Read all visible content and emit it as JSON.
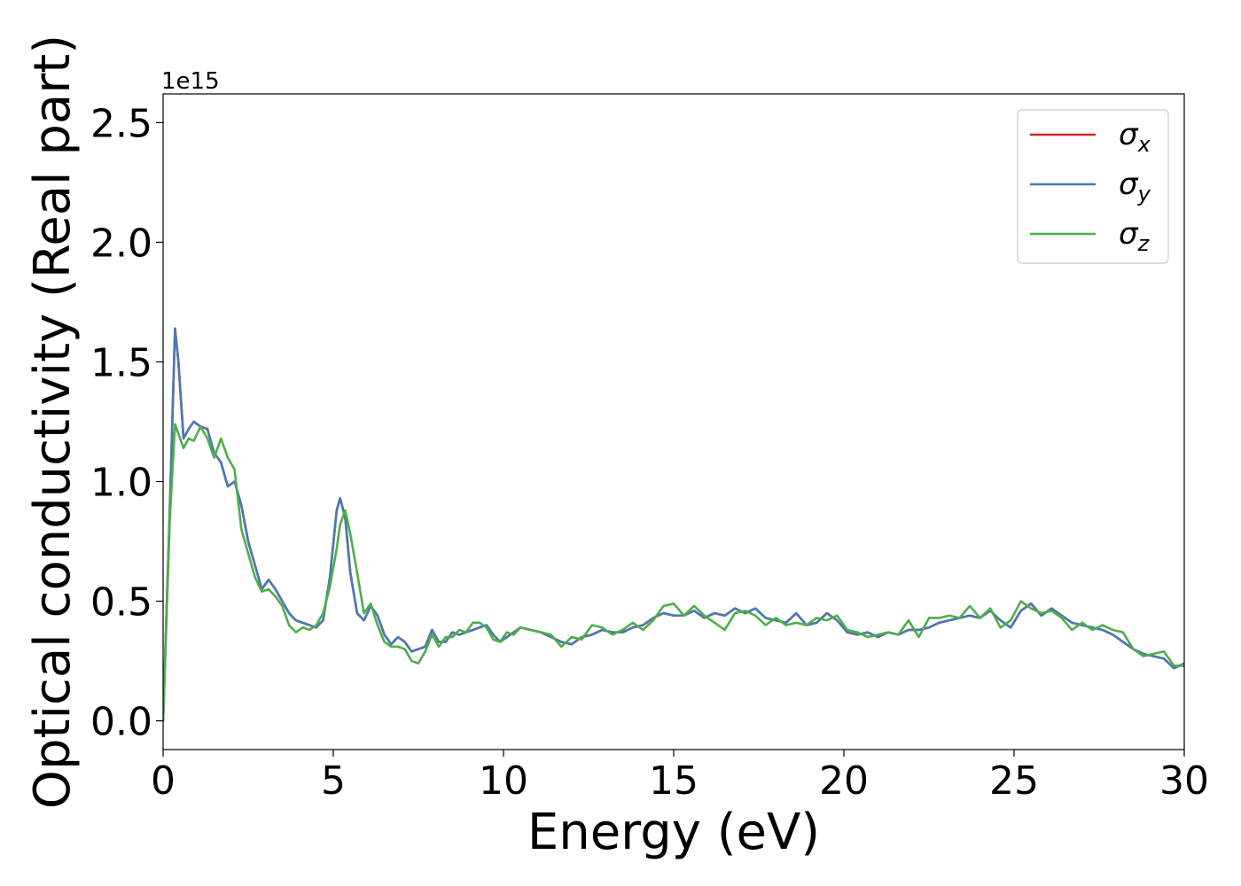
{
  "chart_data": {
    "type": "line",
    "title": "",
    "xlabel": "Energy (eV)",
    "ylabel": "Optical conductivity (Real part)",
    "y_multiplier_label": "1e15",
    "xlim": [
      0,
      30
    ],
    "ylim": [
      -0.12,
      2.62
    ],
    "xticks": [
      0,
      5,
      10,
      15,
      20,
      25,
      30
    ],
    "yticks": [
      0.0,
      0.5,
      1.0,
      1.5,
      2.0,
      2.5
    ],
    "xtick_labels": [
      "0",
      "5",
      "10",
      "15",
      "20",
      "25",
      "30"
    ],
    "ytick_labels": [
      "0.0",
      "0.5",
      "1.0",
      "1.5",
      "2.0",
      "2.5"
    ],
    "grid": false,
    "legend_position": "top-right",
    "series": [
      {
        "name": "σx",
        "legend_symbol": "σ",
        "legend_subscript": "x",
        "color": "#d62728",
        "x": [
          0,
          0.2,
          0.35,
          0.45,
          0.6,
          0.75,
          0.9,
          1.1,
          1.3,
          1.5,
          1.7,
          1.9,
          2.1,
          2.3,
          2.5,
          2.7,
          2.9,
          3.1,
          3.3,
          3.5,
          3.7,
          3.9,
          4.1,
          4.3,
          4.5,
          4.7,
          4.9,
          5.1,
          5.2,
          5.35,
          5.5,
          5.7,
          5.9,
          6.1,
          6.3,
          6.5,
          6.7,
          6.9,
          7.1,
          7.3,
          7.5,
          7.7,
          7.9,
          8.1,
          8.3,
          8.5,
          8.7,
          8.9,
          9.1,
          9.3,
          9.5,
          9.7,
          9.9,
          10.1,
          10.3,
          10.5,
          10.8,
          11.1,
          11.4,
          11.7,
          12.0,
          12.3,
          12.6,
          12.9,
          13.2,
          13.5,
          13.8,
          14.1,
          14.4,
          14.7,
          15.0,
          15.3,
          15.6,
          15.9,
          16.2,
          16.5,
          16.8,
          17.1,
          17.4,
          17.7,
          18.0,
          18.3,
          18.6,
          18.9,
          19.2,
          19.5,
          19.8,
          20.1,
          20.4,
          20.7,
          21.0,
          21.3,
          21.6,
          21.9,
          22.2,
          22.5,
          22.8,
          23.1,
          23.4,
          23.7,
          24.0,
          24.3,
          24.6,
          24.9,
          25.2,
          25.5,
          25.8,
          26.1,
          26.4,
          26.7,
          27.0,
          27.3,
          27.6,
          27.9,
          28.2,
          28.5,
          28.8,
          29.1,
          29.4,
          29.7,
          30.0
        ],
        "values": [
          0.0,
          0.9,
          1.64,
          1.5,
          1.18,
          1.22,
          1.25,
          1.23,
          1.22,
          1.12,
          1.08,
          0.98,
          1.0,
          0.9,
          0.75,
          0.65,
          0.55,
          0.59,
          0.55,
          0.5,
          0.45,
          0.42,
          0.41,
          0.4,
          0.39,
          0.42,
          0.6,
          0.88,
          0.93,
          0.85,
          0.62,
          0.45,
          0.42,
          0.48,
          0.44,
          0.36,
          0.32,
          0.35,
          0.33,
          0.29,
          0.3,
          0.31,
          0.38,
          0.33,
          0.33,
          0.37,
          0.36,
          0.37,
          0.38,
          0.39,
          0.4,
          0.36,
          0.33,
          0.35,
          0.37,
          0.39,
          0.38,
          0.37,
          0.35,
          0.33,
          0.32,
          0.35,
          0.36,
          0.38,
          0.37,
          0.37,
          0.39,
          0.4,
          0.43,
          0.45,
          0.44,
          0.44,
          0.46,
          0.43,
          0.45,
          0.44,
          0.47,
          0.45,
          0.47,
          0.43,
          0.42,
          0.41,
          0.45,
          0.4,
          0.41,
          0.45,
          0.42,
          0.37,
          0.36,
          0.37,
          0.35,
          0.37,
          0.36,
          0.38,
          0.38,
          0.39,
          0.41,
          0.42,
          0.43,
          0.44,
          0.43,
          0.46,
          0.42,
          0.39,
          0.46,
          0.49,
          0.44,
          0.47,
          0.44,
          0.41,
          0.4,
          0.39,
          0.38,
          0.36,
          0.33,
          0.3,
          0.28,
          0.27,
          0.26,
          0.22,
          0.24
        ]
      },
      {
        "name": "σy",
        "legend_symbol": "σ",
        "legend_subscript": "y",
        "color": "#4a7aaf",
        "x": [
          0,
          0.2,
          0.35,
          0.45,
          0.6,
          0.75,
          0.9,
          1.1,
          1.3,
          1.5,
          1.7,
          1.9,
          2.1,
          2.3,
          2.5,
          2.7,
          2.9,
          3.1,
          3.3,
          3.5,
          3.7,
          3.9,
          4.1,
          4.3,
          4.5,
          4.7,
          4.9,
          5.1,
          5.2,
          5.35,
          5.5,
          5.7,
          5.9,
          6.1,
          6.3,
          6.5,
          6.7,
          6.9,
          7.1,
          7.3,
          7.5,
          7.7,
          7.9,
          8.1,
          8.3,
          8.5,
          8.7,
          8.9,
          9.1,
          9.3,
          9.5,
          9.7,
          9.9,
          10.1,
          10.3,
          10.5,
          10.8,
          11.1,
          11.4,
          11.7,
          12.0,
          12.3,
          12.6,
          12.9,
          13.2,
          13.5,
          13.8,
          14.1,
          14.4,
          14.7,
          15.0,
          15.3,
          15.6,
          15.9,
          16.2,
          16.5,
          16.8,
          17.1,
          17.4,
          17.7,
          18.0,
          18.3,
          18.6,
          18.9,
          19.2,
          19.5,
          19.8,
          20.1,
          20.4,
          20.7,
          21.0,
          21.3,
          21.6,
          21.9,
          22.2,
          22.5,
          22.8,
          23.1,
          23.4,
          23.7,
          24.0,
          24.3,
          24.6,
          24.9,
          25.2,
          25.5,
          25.8,
          26.1,
          26.4,
          26.7,
          27.0,
          27.3,
          27.6,
          27.9,
          28.2,
          28.5,
          28.8,
          29.1,
          29.4,
          29.7,
          30.0
        ],
        "values": [
          0.0,
          0.9,
          1.64,
          1.5,
          1.18,
          1.22,
          1.25,
          1.23,
          1.22,
          1.12,
          1.08,
          0.98,
          1.0,
          0.9,
          0.75,
          0.65,
          0.55,
          0.59,
          0.55,
          0.5,
          0.45,
          0.42,
          0.41,
          0.4,
          0.39,
          0.42,
          0.6,
          0.88,
          0.93,
          0.85,
          0.62,
          0.45,
          0.42,
          0.48,
          0.44,
          0.36,
          0.32,
          0.35,
          0.33,
          0.29,
          0.3,
          0.31,
          0.38,
          0.33,
          0.33,
          0.37,
          0.36,
          0.37,
          0.38,
          0.39,
          0.4,
          0.36,
          0.33,
          0.35,
          0.37,
          0.39,
          0.38,
          0.37,
          0.35,
          0.33,
          0.32,
          0.35,
          0.36,
          0.38,
          0.37,
          0.37,
          0.39,
          0.4,
          0.43,
          0.45,
          0.44,
          0.44,
          0.46,
          0.43,
          0.45,
          0.44,
          0.47,
          0.45,
          0.47,
          0.43,
          0.42,
          0.41,
          0.45,
          0.4,
          0.41,
          0.45,
          0.42,
          0.37,
          0.36,
          0.37,
          0.35,
          0.37,
          0.36,
          0.38,
          0.38,
          0.39,
          0.41,
          0.42,
          0.43,
          0.44,
          0.43,
          0.46,
          0.42,
          0.39,
          0.46,
          0.49,
          0.44,
          0.47,
          0.44,
          0.41,
          0.4,
          0.39,
          0.38,
          0.36,
          0.33,
          0.3,
          0.28,
          0.27,
          0.26,
          0.22,
          0.24
        ]
      },
      {
        "name": "σz",
        "legend_symbol": "σ",
        "legend_subscript": "z",
        "color": "#4daf4a",
        "x": [
          0,
          0.2,
          0.35,
          0.45,
          0.6,
          0.75,
          0.9,
          1.1,
          1.3,
          1.5,
          1.7,
          1.9,
          2.1,
          2.3,
          2.5,
          2.7,
          2.9,
          3.1,
          3.3,
          3.5,
          3.7,
          3.9,
          4.1,
          4.3,
          4.5,
          4.7,
          4.9,
          5.1,
          5.2,
          5.35,
          5.5,
          5.7,
          5.9,
          6.1,
          6.3,
          6.5,
          6.7,
          6.9,
          7.1,
          7.3,
          7.5,
          7.7,
          7.9,
          8.1,
          8.3,
          8.5,
          8.7,
          8.9,
          9.1,
          9.3,
          9.5,
          9.7,
          9.9,
          10.1,
          10.3,
          10.5,
          10.8,
          11.1,
          11.4,
          11.7,
          12.0,
          12.3,
          12.6,
          12.9,
          13.2,
          13.5,
          13.8,
          14.1,
          14.4,
          14.7,
          15.0,
          15.3,
          15.6,
          15.9,
          16.2,
          16.5,
          16.8,
          17.1,
          17.4,
          17.7,
          18.0,
          18.3,
          18.6,
          18.9,
          19.2,
          19.5,
          19.8,
          20.1,
          20.4,
          20.7,
          21.0,
          21.3,
          21.6,
          21.9,
          22.2,
          22.5,
          22.8,
          23.1,
          23.4,
          23.7,
          24.0,
          24.3,
          24.6,
          24.9,
          25.2,
          25.5,
          25.8,
          26.1,
          26.4,
          26.7,
          27.0,
          27.3,
          27.6,
          27.9,
          28.2,
          28.5,
          28.8,
          29.1,
          29.4,
          29.7,
          30.0
        ],
        "values": [
          0.0,
          0.85,
          1.24,
          1.2,
          1.14,
          1.18,
          1.17,
          1.23,
          1.18,
          1.1,
          1.18,
          1.1,
          1.05,
          0.8,
          0.7,
          0.6,
          0.54,
          0.55,
          0.52,
          0.48,
          0.4,
          0.37,
          0.39,
          0.38,
          0.4,
          0.45,
          0.56,
          0.72,
          0.82,
          0.88,
          0.78,
          0.62,
          0.45,
          0.49,
          0.4,
          0.33,
          0.31,
          0.31,
          0.3,
          0.25,
          0.24,
          0.29,
          0.36,
          0.31,
          0.35,
          0.35,
          0.38,
          0.37,
          0.41,
          0.41,
          0.39,
          0.34,
          0.33,
          0.37,
          0.36,
          0.39,
          0.38,
          0.37,
          0.36,
          0.31,
          0.35,
          0.34,
          0.4,
          0.39,
          0.36,
          0.38,
          0.41,
          0.38,
          0.42,
          0.48,
          0.49,
          0.44,
          0.48,
          0.44,
          0.41,
          0.38,
          0.45,
          0.46,
          0.44,
          0.4,
          0.43,
          0.4,
          0.41,
          0.4,
          0.43,
          0.42,
          0.44,
          0.38,
          0.37,
          0.35,
          0.36,
          0.37,
          0.36,
          0.42,
          0.35,
          0.43,
          0.43,
          0.44,
          0.43,
          0.48,
          0.43,
          0.47,
          0.39,
          0.42,
          0.5,
          0.47,
          0.45,
          0.46,
          0.43,
          0.38,
          0.41,
          0.38,
          0.4,
          0.38,
          0.37,
          0.3,
          0.27,
          0.28,
          0.29,
          0.23,
          0.23
        ]
      }
    ]
  }
}
